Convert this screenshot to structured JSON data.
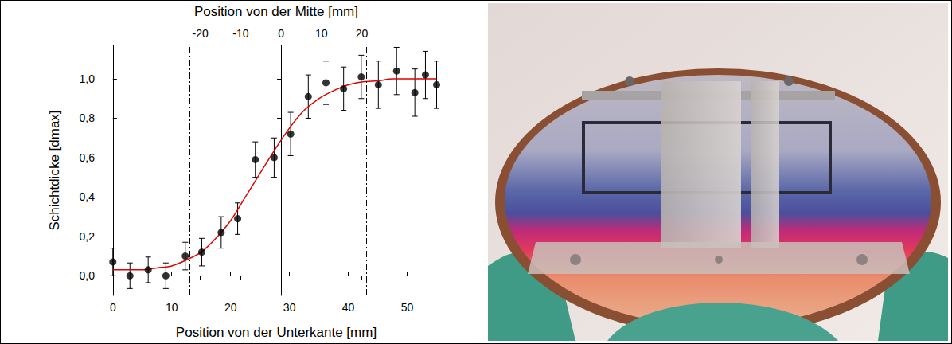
{
  "chart_data": {
    "type": "scatter",
    "x_label": "Position von der Unterkante [mm]",
    "x2_label": "Position von der Mitte [mm]",
    "y_label": "Schichtdicke [dmax]",
    "x": [
      0,
      2.9,
      6,
      9,
      12.3,
      15.1,
      18.4,
      21.2,
      24.2,
      27.4,
      30.2,
      33.2,
      36.2,
      39.2,
      42.2,
      45.1,
      48.2,
      51.3,
      53.1,
      55
    ],
    "values": [
      0.07,
      0.0,
      0.03,
      0.0,
      0.1,
      0.12,
      0.22,
      0.29,
      0.59,
      0.6,
      0.72,
      0.91,
      0.98,
      0.95,
      1.01,
      0.97,
      1.04,
      0.93,
      1.02,
      0.97
    ],
    "errors": [
      0.07,
      0.065,
      0.065,
      0.065,
      0.07,
      0.07,
      0.08,
      0.08,
      0.09,
      0.1,
      0.11,
      0.11,
      0.11,
      0.11,
      0.11,
      0.12,
      0.12,
      0.12,
      0.12,
      0.12
    ],
    "color": "#000000",
    "marker": "circle",
    "fit": {
      "type": "line",
      "color": "#e00000",
      "x": [
        0,
        2.5,
        5,
        7.5,
        10,
        12.5,
        15,
        17.5,
        20,
        22.5,
        25,
        27.5,
        30,
        32.5,
        35,
        37.5,
        40,
        42.5,
        45,
        47.5,
        50,
        52.5,
        55
      ],
      "values": [
        0.03,
        0.03,
        0.03,
        0.04,
        0.05,
        0.08,
        0.12,
        0.19,
        0.28,
        0.4,
        0.52,
        0.64,
        0.75,
        0.84,
        0.9,
        0.94,
        0.97,
        0.985,
        0.99,
        1.0,
        1.0,
        1.0,
        1.0
      ]
    },
    "vlines": {
      "x": [
        13,
        43
      ],
      "color": "#000000",
      "line_style": "dashdot"
    },
    "xlim": [
      -2,
      57.5
    ],
    "xticks": [
      0,
      10,
      20,
      30,
      40,
      50
    ],
    "x2lim": [
      -44.6,
      42.2
    ],
    "x2ticks": [
      -20,
      -10,
      0,
      10,
      20
    ],
    "ylim": [
      -0.1,
      1.17
    ],
    "yticks": [
      {
        "value": 0,
        "label": "0,0"
      },
      {
        "value": 0.2,
        "label": "0,2"
      },
      {
        "value": 0.4,
        "label": "0,4"
      },
      {
        "value": 0.6,
        "label": "0,6"
      },
      {
        "value": 0.8,
        "label": "0,8"
      },
      {
        "value": 1.0,
        "label": "1,0"
      }
    ],
    "grid": false
  }
}
